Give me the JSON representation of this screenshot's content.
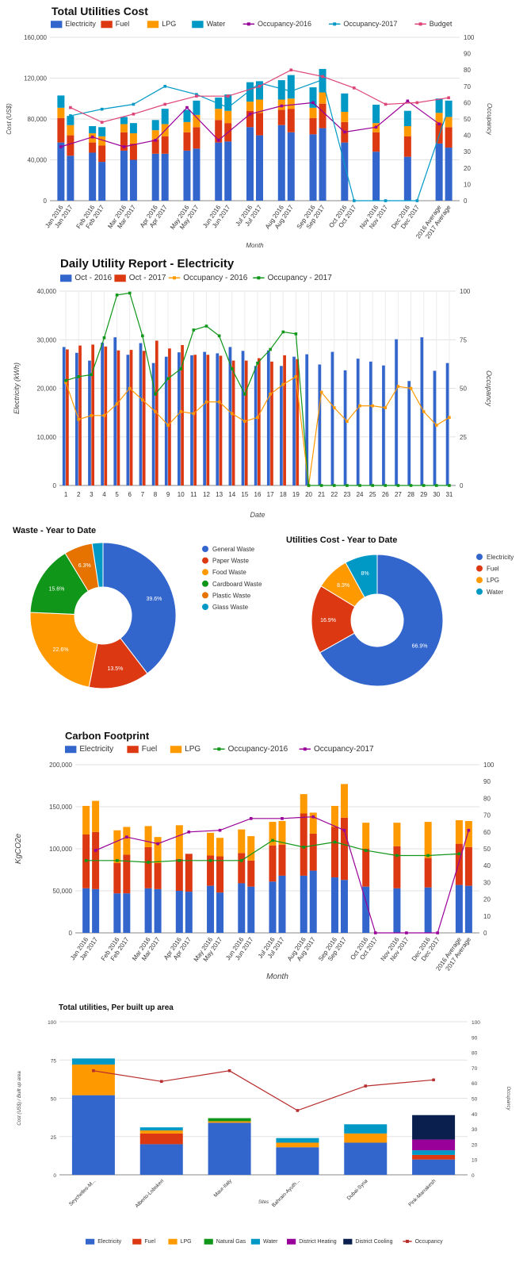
{
  "colors": {
    "electricity": "#3366cc",
    "fuel": "#dc3912",
    "lpg": "#ff9900",
    "water": "#0099c6",
    "natural_gas": "#109618",
    "district_heating": "#990099",
    "district_cooling": "#0b1f4f",
    "occ2016_c1": "#990099",
    "occ2017_c1": "#0099c6",
    "budget": "#dd4477",
    "occ2016_c2": "#ff9900",
    "occ2017_c2": "#109618",
    "plastic": "#e67300",
    "occ2016_c4": "#109618",
    "occ2017_c4": "#990099",
    "occ_c5": "#b82e2e"
  },
  "chart_data": [
    {
      "id": "total-utilities-cost",
      "type": "bar",
      "stacked": true,
      "title": "Total Utilities Cost",
      "xlabel": "Month",
      "ylabel": "Cost (US$)",
      "y2label": "Occupancy",
      "ylim": [
        0,
        160000
      ],
      "y2lim": [
        0,
        100
      ],
      "yticks": [
        "0",
        "40,000",
        "80,000",
        "120,000",
        "160,000"
      ],
      "y2ticks": [
        "0",
        "10",
        "20",
        "30",
        "40",
        "50",
        "60",
        "70",
        "80",
        "90",
        "100"
      ],
      "categories": [
        "Jan 2016",
        "Jan 2017",
        "Feb 2016",
        "Feb 2017",
        "Mar 2016",
        "Mar 2017",
        "Apr 2016",
        "Apr 2017",
        "May 2016",
        "May 2017",
        "Jun 2016",
        "Jun 2017",
        "Jul 2016",
        "Jul 2017",
        "Aug 2016",
        "Aug 2017",
        "Sep 2016",
        "Sep 2017",
        "Oct 2016",
        "Oct 2017",
        "Nov 2016",
        "Nov 2017",
        "Dec 2016",
        "Dec 2017",
        "2016 Average",
        "2017 Average"
      ],
      "series": [
        {
          "name": "Electricity",
          "kind": "bar",
          "color_key": "electricity",
          "values": [
            57000,
            44000,
            47000,
            38000,
            49000,
            40000,
            46000,
            46000,
            49000,
            51000,
            57000,
            58000,
            72000,
            64000,
            74000,
            67000,
            65000,
            71000,
            57000,
            0,
            48000,
            0,
            43000,
            0,
            56000,
            52000
          ]
        },
        {
          "name": "Fuel",
          "kind": "bar",
          "color_key": "fuel",
          "values": [
            24000,
            20000,
            10000,
            16000,
            18000,
            16000,
            14000,
            17000,
            18000,
            21000,
            22000,
            18000,
            16000,
            22000,
            15000,
            23000,
            16000,
            24000,
            20000,
            0,
            19000,
            0,
            20000,
            0,
            20000,
            20000
          ]
        },
        {
          "name": "LPG",
          "kind": "bar",
          "color_key": "lpg",
          "values": [
            10000,
            10000,
            9000,
            9000,
            8000,
            10000,
            9000,
            12000,
            10000,
            12000,
            11000,
            12000,
            9000,
            13000,
            10000,
            10000,
            10000,
            11000,
            10000,
            0,
            9000,
            0,
            10000,
            0,
            10000,
            10000
          ]
        },
        {
          "name": "Water",
          "kind": "bar",
          "color_key": "water",
          "values": [
            12000,
            9000,
            7000,
            9000,
            7000,
            10000,
            10000,
            15000,
            12000,
            14000,
            11000,
            16000,
            19000,
            18000,
            19000,
            23000,
            20000,
            23000,
            18000,
            0,
            18000,
            0,
            15000,
            0,
            14000,
            16000
          ]
        },
        {
          "name": "Occupancy-2016",
          "kind": "line",
          "axis": "right",
          "color_key": "occ2016_c1",
          "points": [
            [
              0,
              33
            ],
            [
              2,
              39
            ],
            [
              4,
              33
            ],
            [
              6,
              37
            ],
            [
              8,
              57
            ],
            [
              10,
              37
            ],
            [
              12,
              53
            ],
            [
              14,
              58
            ],
            [
              16,
              60
            ],
            [
              18,
              42
            ],
            [
              20,
              45
            ],
            [
              22,
              61
            ],
            [
              24,
              47
            ]
          ]
        },
        {
          "name": "Occupancy-2017",
          "kind": "line",
          "axis": "right",
          "color_key": "occ2017_c1",
          "points": [
            [
              1,
              52
            ],
            [
              3,
              56
            ],
            [
              5,
              59
            ],
            [
              7,
              70
            ],
            [
              9,
              65
            ],
            [
              11,
              57
            ],
            [
              13,
              72
            ],
            [
              15,
              67
            ],
            [
              17,
              74
            ],
            [
              19,
              0
            ],
            [
              21,
              0
            ],
            [
              23,
              0
            ],
            [
              25,
              57
            ]
          ]
        },
        {
          "name": "Budget",
          "kind": "line",
          "axis": "right",
          "color_key": "budget",
          "points": [
            [
              1,
              57
            ],
            [
              3,
              48
            ],
            [
              5,
              53
            ],
            [
              7,
              59
            ],
            [
              9,
              64
            ],
            [
              11,
              64
            ],
            [
              13,
              70
            ],
            [
              15,
              80
            ],
            [
              17,
              76
            ],
            [
              19,
              69
            ],
            [
              21,
              59
            ],
            [
              23,
              60
            ],
            [
              25,
              63
            ]
          ]
        }
      ]
    },
    {
      "id": "daily-utility-electricity",
      "type": "bar",
      "stacked": false,
      "title": "Daily Utility Report - Electricity",
      "xlabel": "Date",
      "ylabel": "Electricity (kWh)",
      "y2label": "Occupancy",
      "ylim": [
        0,
        40000
      ],
      "y2lim": [
        0,
        100
      ],
      "yticks": [
        "0",
        "10,000",
        "20,000",
        "30,000",
        "40,000"
      ],
      "y2ticks": [
        "0",
        "25",
        "50",
        "75",
        "100"
      ],
      "categories": [
        "1",
        "2",
        "3",
        "4",
        "5",
        "6",
        "7",
        "8",
        "9",
        "10",
        "11",
        "12",
        "13",
        "14",
        "15",
        "16",
        "17",
        "18",
        "19",
        "20",
        "21",
        "22",
        "23",
        "24",
        "25",
        "26",
        "27",
        "28",
        "29",
        "30",
        "31"
      ],
      "series": [
        {
          "name": "Oct - 2016",
          "kind": "bar",
          "color_key": "electricity",
          "values": [
            28500,
            27300,
            25700,
            29400,
            30500,
            26900,
            29300,
            25200,
            26500,
            27400,
            26800,
            27500,
            27200,
            28500,
            27700,
            24600,
            27800,
            24600,
            26500,
            27000,
            24900,
            27500,
            23700,
            26100,
            25500,
            24700,
            30100,
            21500,
            30500,
            23600,
            25200
          ]
        },
        {
          "name": "Oct - 2017",
          "kind": "bar",
          "color_key": "fuel",
          "values": [
            28000,
            28800,
            29000,
            28600,
            27800,
            27900,
            27700,
            29800,
            28200,
            28900,
            26900,
            26900,
            26700,
            25700,
            25700,
            26200,
            25500,
            26800,
            26000,
            0,
            0,
            0,
            0,
            0,
            0,
            0,
            0,
            0,
            0,
            0,
            0
          ]
        },
        {
          "name": "Occupancy - 2016",
          "kind": "line",
          "axis": "right",
          "color_key": "occ2016_c2",
          "values": [
            53,
            34,
            36,
            36,
            42,
            50,
            44,
            38,
            31,
            38,
            37,
            43,
            43,
            37,
            33,
            35,
            47,
            52,
            56,
            0,
            48,
            40,
            33,
            41,
            41,
            40,
            51,
            50,
            38,
            31,
            35
          ]
        },
        {
          "name": "Occupancy - 2017",
          "kind": "line",
          "axis": "right",
          "color_key": "occ2017_c2",
          "values": [
            54,
            56,
            57,
            76,
            98,
            99,
            77,
            47,
            55,
            60,
            80,
            82,
            77,
            60,
            47,
            63,
            70,
            79,
            78,
            0,
            0,
            0,
            0,
            0,
            0,
            0,
            0,
            0,
            0,
            0,
            0
          ]
        }
      ]
    },
    {
      "id": "waste-ytd",
      "type": "pie",
      "donut": true,
      "title": "Waste - Year to Date",
      "labels": [
        "General Waste",
        "Paper Waste",
        "Food Waste",
        "Cardboard Waste",
        "Plastic Waste",
        "Glass Waste"
      ],
      "values": [
        39.6,
        13.5,
        22.6,
        15.6,
        6.3,
        2.4
      ],
      "value_labels": [
        "39.6%",
        "13.5%",
        "22.6%",
        "15.6%",
        "6.3%",
        ""
      ],
      "color_keys": [
        "electricity",
        "fuel",
        "lpg",
        "natural_gas",
        "plastic",
        "water"
      ]
    },
    {
      "id": "utilities-cost-ytd",
      "type": "pie",
      "donut": true,
      "title": "Utilities Cost - Year to Date",
      "labels": [
        "Electricity",
        "Fuel",
        "LPG",
        "Water"
      ],
      "values": [
        66.9,
        16.9,
        8.3,
        8.0
      ],
      "value_labels": [
        "66.9%",
        "16.9%",
        "8.3%",
        "8%"
      ],
      "color_keys": [
        "electricity",
        "fuel",
        "lpg",
        "water"
      ]
    },
    {
      "id": "carbon-footprint",
      "type": "bar",
      "stacked": true,
      "title": "Carbon Footprint",
      "xlabel": "Month",
      "ylabel": "KgCO2e",
      "ylim": [
        0,
        200000
      ],
      "y2lim": [
        0,
        100
      ],
      "yticks": [
        "0",
        "50,000",
        "100,000",
        "150,000",
        "200,000"
      ],
      "y2ticks": [
        "0",
        "10",
        "20",
        "30",
        "40",
        "50",
        "60",
        "70",
        "80",
        "90",
        "100"
      ],
      "categories": [
        "Jan 2016",
        "Jan 2017",
        "Feb 2016",
        "Feb 2017",
        "Mar 2016",
        "Mar 2017",
        "Apr 2016",
        "Apr 2017",
        "May 2016",
        "May 2017",
        "Jun 2016",
        "Jun 2017",
        "Jul 2016",
        "Jul 2017",
        "Aug 2016",
        "Aug 2017",
        "Sep 2016",
        "Sep 2017",
        "Oct 2016",
        "Oct 2017",
        "Nov 2016",
        "Nov 2017",
        "Dec 2016",
        "Dec 2017",
        "2016 Average",
        "2017 Average"
      ],
      "series": [
        {
          "name": "Electricity",
          "kind": "bar",
          "color_key": "electricity",
          "values": [
            53000,
            52000,
            47000,
            47000,
            53000,
            52000,
            50000,
            49000,
            56000,
            48000,
            59000,
            55000,
            61000,
            68000,
            68000,
            74000,
            66000,
            63000,
            55000,
            0,
            53000,
            0,
            54000,
            0,
            57000,
            56000
          ]
        },
        {
          "name": "Fuel",
          "kind": "bar",
          "color_key": "fuel",
          "values": [
            64000,
            68000,
            36000,
            46000,
            49000,
            31000,
            38000,
            45000,
            36000,
            43000,
            36000,
            31000,
            43000,
            37000,
            74000,
            44000,
            60000,
            74000,
            45000,
            0,
            50000,
            0,
            35000,
            0,
            49000,
            46000
          ]
        },
        {
          "name": "LPG",
          "kind": "bar",
          "color_key": "lpg",
          "values": [
            34000,
            37000,
            39000,
            33000,
            25000,
            31000,
            40000,
            0,
            27000,
            22000,
            28000,
            29000,
            28000,
            28000,
            23000,
            25000,
            25000,
            40000,
            31000,
            0,
            28000,
            0,
            43000,
            0,
            28000,
            31000
          ]
        },
        {
          "name": "Occupancy-2016",
          "kind": "line",
          "axis": "right",
          "color_key": "occ2016_c4",
          "points": [
            [
              0,
              43
            ],
            [
              2,
              43
            ],
            [
              4,
              42
            ],
            [
              6,
              43
            ],
            [
              8,
              43
            ],
            [
              10,
              43
            ],
            [
              12,
              55
            ],
            [
              14,
              51
            ],
            [
              16,
              54
            ],
            [
              18,
              49
            ],
            [
              20,
              46
            ],
            [
              22,
              46
            ],
            [
              24,
              47
            ]
          ]
        },
        {
          "name": "Occupancy-2017",
          "kind": "line",
          "axis": "right",
          "color_key": "occ2017_c4",
          "points": [
            [
              1,
              49
            ],
            [
              3,
              57
            ],
            [
              5,
              53
            ],
            [
              7,
              60
            ],
            [
              9,
              61
            ],
            [
              11,
              68
            ],
            [
              13,
              68
            ],
            [
              15,
              69
            ],
            [
              17,
              61
            ],
            [
              19,
              0
            ],
            [
              21,
              0
            ],
            [
              23,
              0
            ],
            [
              25,
              61
            ]
          ]
        }
      ]
    },
    {
      "id": "per-built-up-area",
      "type": "bar",
      "stacked": true,
      "title": "Total utilities, Per built up area",
      "xlabel": "Sites",
      "ylabel": "Cost (US$) / Built up area",
      "y2label": "Occupancy",
      "ylim": [
        0,
        100
      ],
      "y2lim": [
        0,
        100
      ],
      "yticks": [
        "0",
        "25",
        "50",
        "75",
        "100"
      ],
      "y2ticks": [
        "0",
        "10",
        "20",
        "30",
        "40",
        "50",
        "60",
        "70",
        "80",
        "90",
        "100"
      ],
      "categories": [
        "Seychelles-M...",
        "Alberto-Lobokeri",
        "Maur-Italy",
        "Bahrain-Ayuth...",
        "Dubai-Syria",
        "Pink-Marrakesh"
      ],
      "series": [
        {
          "name": "Electricity",
          "kind": "bar",
          "color_key": "electricity",
          "values": [
            52,
            20,
            34,
            18,
            21,
            10
          ]
        },
        {
          "name": "Fuel",
          "kind": "bar",
          "color_key": "fuel",
          "values": [
            0,
            7,
            0,
            0,
            0,
            3
          ]
        },
        {
          "name": "LPG",
          "kind": "bar",
          "color_key": "lpg",
          "values": [
            20,
            2,
            1,
            3,
            6,
            0
          ]
        },
        {
          "name": "Natural Gas",
          "kind": "bar",
          "color_key": "natural_gas",
          "values": [
            0,
            0,
            2,
            0,
            0,
            0
          ]
        },
        {
          "name": "Water",
          "kind": "bar",
          "color_key": "water",
          "values": [
            4,
            2,
            0,
            3,
            6,
            3
          ]
        },
        {
          "name": "District Heating",
          "kind": "bar",
          "color_key": "district_heating",
          "values": [
            0,
            0,
            0,
            0,
            0,
            7
          ]
        },
        {
          "name": "District Cooling",
          "kind": "bar",
          "color_key": "district_cooling",
          "values": [
            0,
            0,
            0,
            0,
            0,
            16
          ]
        },
        {
          "name": "Occupancy",
          "kind": "line",
          "axis": "right",
          "color_key": "occ_c5",
          "values": [
            68,
            61,
            68,
            42,
            58,
            62
          ]
        }
      ]
    }
  ]
}
